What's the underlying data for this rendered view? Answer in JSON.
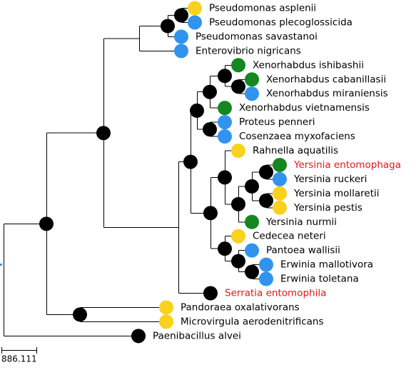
{
  "colors": {
    "yellow": "#f9d21d",
    "blue": "#3094ee",
    "green": "#14871f",
    "node": "#000000",
    "highlight": "#e8141b"
  },
  "scale_bar": {
    "label": "886.111"
  },
  "leaves": [
    {
      "id": "L1",
      "name": "Pseudomonas asplenii",
      "color": "yellow",
      "highlight": false
    },
    {
      "id": "L2",
      "name": "Pseudomonas plecoglossicida",
      "color": "blue",
      "highlight": false
    },
    {
      "id": "L3",
      "name": "Pseudomonas savastanoi",
      "color": "blue",
      "highlight": false
    },
    {
      "id": "L4",
      "name": "Enterovibrio nigricans",
      "color": "blue",
      "highlight": false
    },
    {
      "id": "L5",
      "name": "Xenorhabdus ishibashii",
      "color": "green",
      "highlight": false
    },
    {
      "id": "L6",
      "name": "Xenorhabdus cabanillasii",
      "color": "green",
      "highlight": false
    },
    {
      "id": "L7",
      "name": "Xenorhabdus miraniensis",
      "color": "blue",
      "highlight": false
    },
    {
      "id": "L8",
      "name": "Xenorhabdus vietnamensis",
      "color": "green",
      "highlight": false
    },
    {
      "id": "L9",
      "name": "Proteus penneri",
      "color": "blue",
      "highlight": false
    },
    {
      "id": "L10",
      "name": "Cosenzaea myxofaciens",
      "color": "blue",
      "highlight": false
    },
    {
      "id": "L11",
      "name": "Rahnella aquatilis",
      "color": "yellow",
      "highlight": false
    },
    {
      "id": "L12",
      "name": "Yersinia entomophaga",
      "color": "green",
      "highlight": true
    },
    {
      "id": "L13",
      "name": "Yersinia ruckeri",
      "color": "blue",
      "highlight": false
    },
    {
      "id": "L14",
      "name": "Yersinia mollaretii",
      "color": "yellow",
      "highlight": false
    },
    {
      "id": "L15",
      "name": "Yersinia pestis",
      "color": "yellow",
      "highlight": false
    },
    {
      "id": "L16",
      "name": "Yersinia nurmii",
      "color": "green",
      "highlight": false
    },
    {
      "id": "L17",
      "name": "Cedecea neteri",
      "color": "yellow",
      "highlight": false
    },
    {
      "id": "L18",
      "name": "Pantoea wallisii",
      "color": "blue",
      "highlight": false
    },
    {
      "id": "L19",
      "name": "Erwinia mallotivora",
      "color": "blue",
      "highlight": false
    },
    {
      "id": "L20",
      "name": "Erwinia toletana",
      "color": "blue",
      "highlight": false
    },
    {
      "id": "L21",
      "name": "Serratia entomophila",
      "color": "node",
      "highlight": true
    },
    {
      "id": "L22",
      "name": "Pandoraea oxalativorans",
      "color": "yellow",
      "highlight": false
    },
    {
      "id": "L23",
      "name": "Microvirgula aerodenitrificans",
      "color": "yellow",
      "highlight": false
    },
    {
      "id": "L24",
      "name": "Paenibacillus alvei",
      "color": "node",
      "highlight": false
    }
  ],
  "tree": {
    "id": "root",
    "children": [
      {
        "id": "A",
        "children": [
          {
            "id": "B",
            "children": [
              {
                "id": "C",
                "children": [
                  {
                    "id": "D",
                    "children": [
                      {
                        "id": "E",
                        "children": [
                          {
                            "leaf": "L1"
                          },
                          {
                            "leaf": "L2"
                          }
                        ]
                      },
                      {
                        "leaf": "L3"
                      }
                    ]
                  },
                  {
                    "leaf": "L4"
                  }
                ]
              },
              {
                "id": "F",
                "children": [
                  {
                    "id": "G",
                    "children": [
                      {
                        "id": "H",
                        "children": [
                          {
                            "id": "I",
                            "children": [
                              {
                                "id": "J",
                                "children": [
                                  {
                                    "leaf": "L5"
                                  },
                                  {
                                    "id": "K",
                                    "children": [
                                      {
                                        "leaf": "L6"
                                      },
                                      {
                                        "leaf": "L7"
                                      }
                                    ]
                                  }
                                ]
                              },
                              {
                                "leaf": "L8"
                              }
                            ]
                          },
                          {
                            "id": "M",
                            "children": [
                              {
                                "leaf": "L9"
                              },
                              {
                                "leaf": "L10"
                              }
                            ]
                          }
                        ]
                      },
                      {
                        "id": "N",
                        "children": [
                          {
                            "id": "O",
                            "children": [
                              {
                                "leaf": "L11"
                              },
                              {
                                "id": "P",
                                "children": [
                                  {
                                    "id": "Q",
                                    "children": [
                                      {
                                        "id": "R",
                                        "children": [
                                          {
                                            "leaf": "L12"
                                          },
                                          {
                                            "leaf": "L13"
                                          }
                                        ]
                                      },
                                      {
                                        "id": "S",
                                        "children": [
                                          {
                                            "leaf": "L14"
                                          },
                                          {
                                            "leaf": "L15"
                                          }
                                        ]
                                      }
                                    ]
                                  },
                                  {
                                    "leaf": "L16"
                                  }
                                ]
                              }
                            ]
                          },
                          {
                            "id": "T",
                            "children": [
                              {
                                "leaf": "L17"
                              },
                              {
                                "id": "U",
                                "children": [
                                  {
                                    "leaf": "L18"
                                  },
                                  {
                                    "id": "V",
                                    "children": [
                                      {
                                        "leaf": "L19"
                                      },
                                      {
                                        "leaf": "L20"
                                      }
                                    ]
                                  }
                                ]
                              }
                            ]
                          }
                        ]
                      }
                    ]
                  },
                  {
                    "leaf": "L21"
                  }
                ]
              }
            ]
          },
          {
            "id": "W",
            "children": [
              {
                "leaf": "L22"
              },
              {
                "leaf": "L23"
              }
            ]
          }
        ]
      },
      {
        "leaf": "L24"
      }
    ]
  }
}
